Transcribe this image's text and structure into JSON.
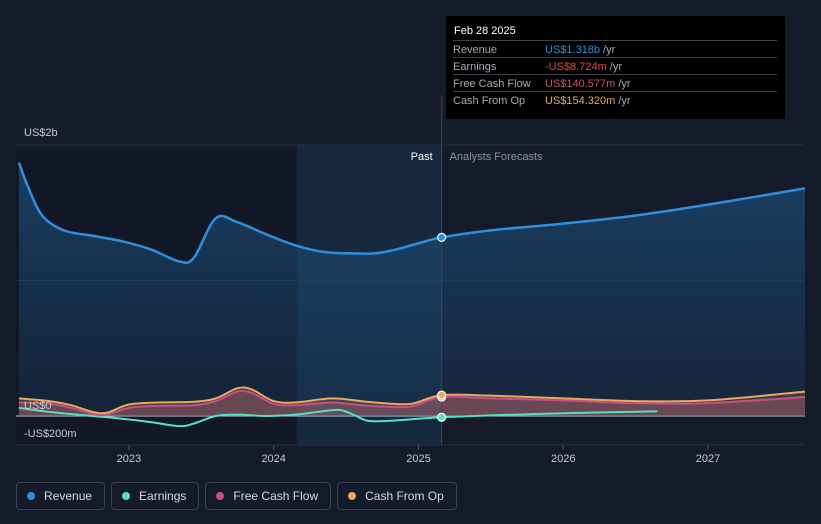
{
  "chart_data": {
    "type": "area",
    "y_unit_labels": {
      "top": "US$2b",
      "zero": "US$0",
      "bottom": "-US$200m"
    },
    "ylim": [
      -200,
      2000
    ],
    "x_ticks": [
      "2023",
      "2024",
      "2025",
      "2026",
      "2027"
    ],
    "x_tick_values": [
      2023.0,
      2024.0,
      2025.0,
      2026.0,
      2027.0
    ],
    "xlim": [
      2022.22,
      2027.67
    ],
    "divider_x": 2025.16,
    "past_start_x": 2024.16,
    "past_label": "Past",
    "forecast_label": "Analysts Forecasts",
    "series": [
      {
        "name": "Revenue",
        "color": "#2f8fdd",
        "x": [
          2022.24,
          2022.3,
          2022.4,
          2022.55,
          2022.75,
          2022.95,
          2023.15,
          2023.35,
          2023.45,
          2023.6,
          2023.75,
          2023.95,
          2024.15,
          2024.35,
          2024.55,
          2024.7,
          2024.85,
          2025.0,
          2025.16,
          2025.5,
          2026.0,
          2026.5,
          2027.0,
          2027.67
        ],
        "values": [
          1870,
          1700,
          1480,
          1370,
          1330,
          1290,
          1230,
          1140,
          1170,
          1460,
          1430,
          1340,
          1260,
          1210,
          1200,
          1200,
          1230,
          1275,
          1318,
          1370,
          1420,
          1480,
          1560,
          1680
        ]
      },
      {
        "name": "Earnings",
        "color": "#58e0c4",
        "x": [
          2022.24,
          2022.45,
          2022.75,
          2022.95,
          2023.15,
          2023.35,
          2023.45,
          2023.6,
          2023.75,
          2023.95,
          2024.15,
          2024.3,
          2024.45,
          2024.55,
          2024.65,
          2024.8,
          2025.0,
          2025.16,
          2025.5,
          2026.0,
          2026.65
        ],
        "values": [
          60,
          30,
          0,
          -20,
          -45,
          -75,
          -55,
          0,
          10,
          0,
          10,
          30,
          45,
          10,
          -35,
          -35,
          -20,
          -9,
          5,
          20,
          35
        ]
      },
      {
        "name": "Free Cash Flow",
        "color": "#c94f86",
        "x": [
          2022.24,
          2022.45,
          2022.6,
          2022.75,
          2022.85,
          2023.0,
          2023.2,
          2023.45,
          2023.6,
          2023.75,
          2023.85,
          2024.0,
          2024.15,
          2024.4,
          2024.6,
          2024.75,
          2024.95,
          2025.16,
          2025.5,
          2026.0,
          2026.5,
          2027.0,
          2027.67
        ],
        "values": [
          100,
          90,
          60,
          15,
          10,
          60,
          75,
          80,
          110,
          180,
          170,
          90,
          80,
          100,
          80,
          70,
          70,
          140,
          130,
          115,
          95,
          95,
          140
        ]
      },
      {
        "name": "Cash From Op",
        "color": "#e8aa5c",
        "x": [
          2022.24,
          2022.45,
          2022.6,
          2022.75,
          2022.85,
          2023.0,
          2023.2,
          2023.45,
          2023.6,
          2023.75,
          2023.85,
          2024.0,
          2024.15,
          2024.4,
          2024.6,
          2024.75,
          2024.95,
          2025.16,
          2025.5,
          2026.0,
          2026.5,
          2027.0,
          2027.67
        ],
        "values": [
          130,
          110,
          80,
          30,
          25,
          85,
          100,
          105,
          130,
          205,
          195,
          110,
          100,
          130,
          110,
          95,
          90,
          154,
          150,
          130,
          110,
          115,
          180
        ]
      }
    ]
  },
  "tooltip": {
    "date": "Feb 28 2025",
    "unit": "/yr",
    "rows": [
      {
        "label": "Revenue",
        "value": "US$1.318b",
        "color": "#2f8fdd"
      },
      {
        "label": "Earnings",
        "value": "-US$8.724m",
        "color": "#e8454a"
      },
      {
        "label": "Free Cash Flow",
        "value": "US$140.577m",
        "color": "#c94f86"
      },
      {
        "label": "Cash From Op",
        "value": "US$154.320m",
        "color": "#e8aa5c"
      }
    ]
  },
  "legend": [
    {
      "label": "Revenue",
      "color": "#2f8fdd"
    },
    {
      "label": "Earnings",
      "color": "#58e0c4"
    },
    {
      "label": "Free Cash Flow",
      "color": "#c94f86"
    },
    {
      "label": "Cash From Op",
      "color": "#e8aa5c"
    }
  ]
}
